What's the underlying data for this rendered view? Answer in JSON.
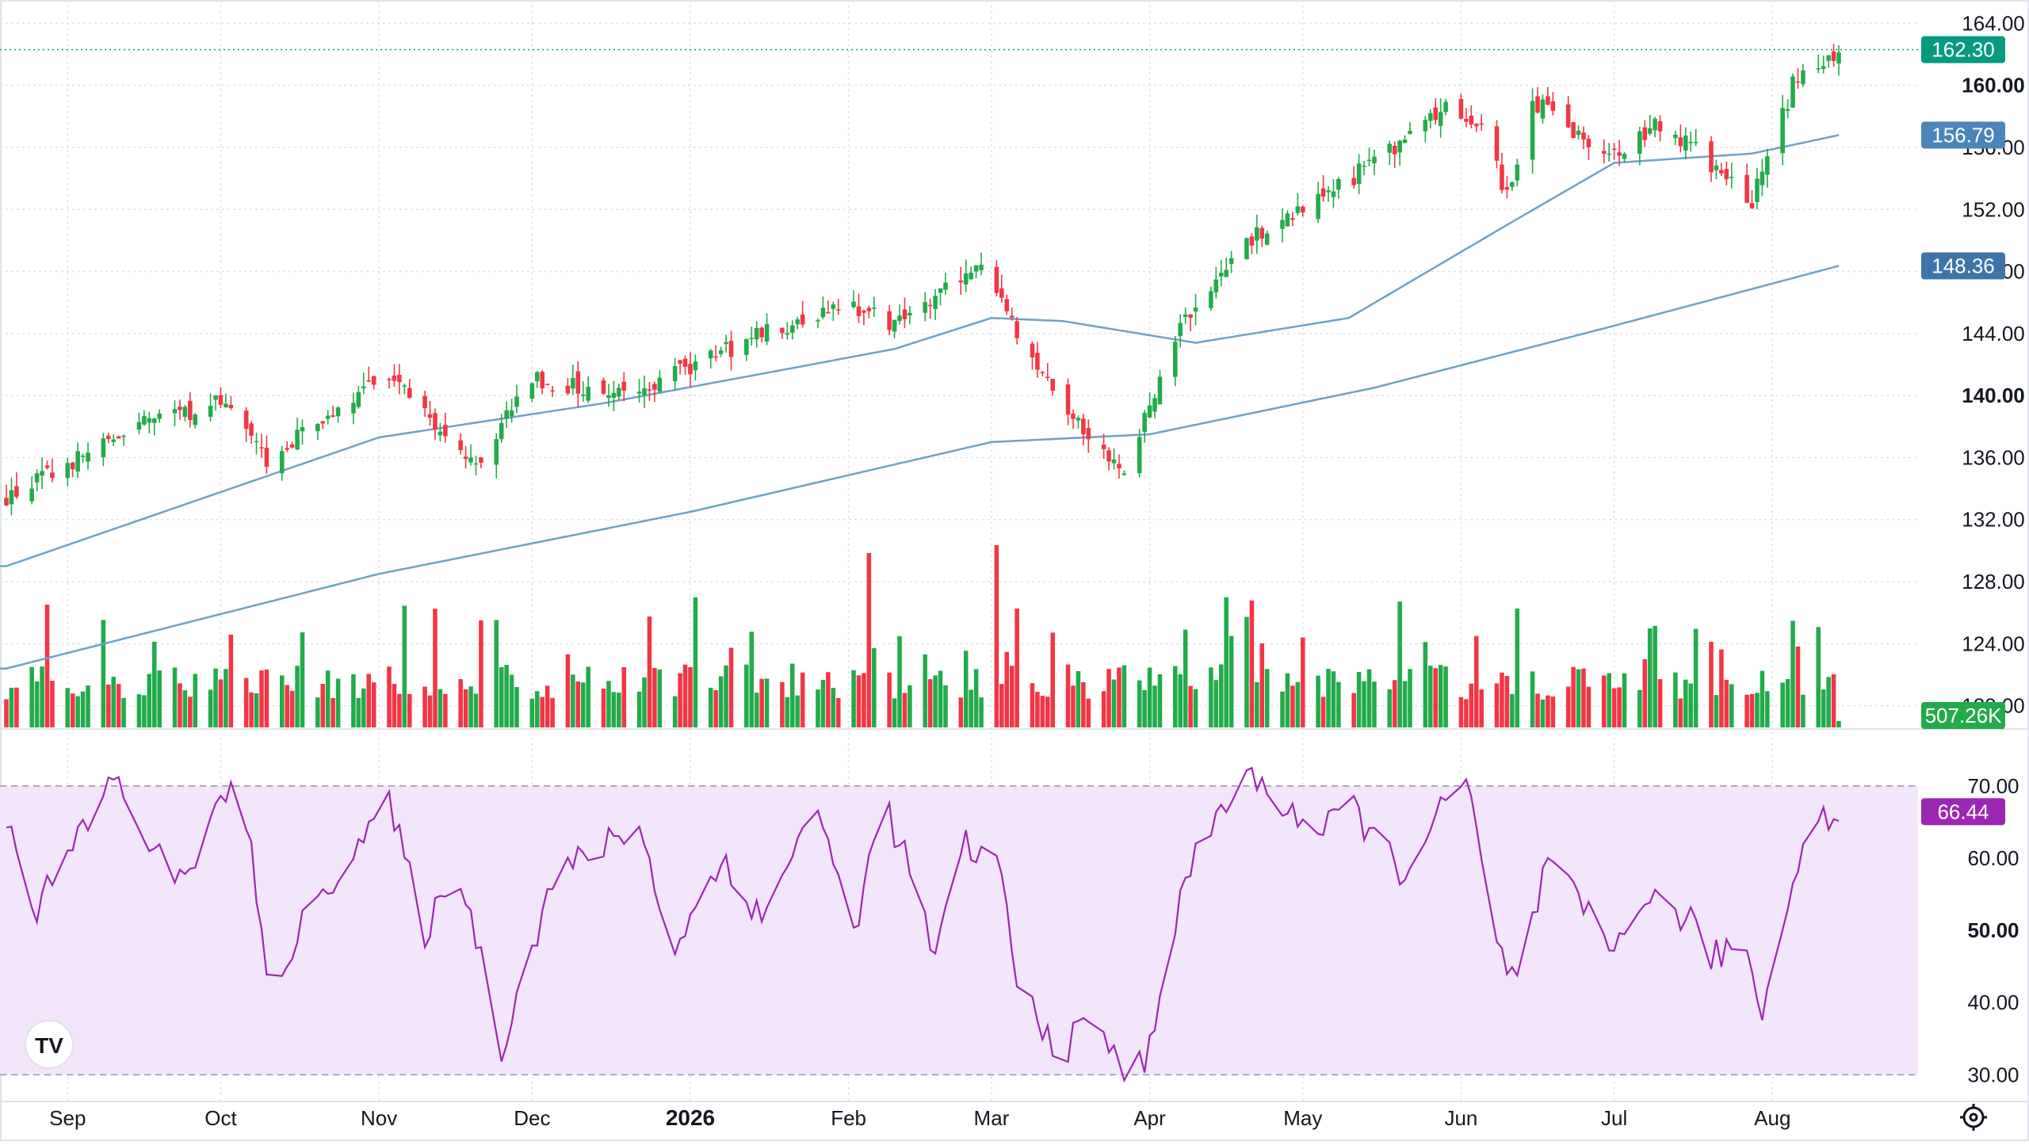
{
  "colors": {
    "up": "#22ab4a",
    "down": "#f23645",
    "ma_line": "#6fa2c4",
    "rsi_line": "#9c27b0",
    "rsi_band": "#f3e5fc",
    "grid": "#e0e3eb",
    "current_price": "#089981",
    "ma50_badge": "#4a86b8",
    "ma200_badge": "#3f74a8",
    "volume_badge": "#22ab4a",
    "rsi_badge": "#9c27b0"
  },
  "badges": {
    "last_price": "162.30",
    "ma50": "156.79",
    "ma200": "148.36",
    "volume": "507.26K",
    "rsi": "66.44"
  },
  "logo_text": "TV",
  "chart_data": [
    {
      "type": "candlestick",
      "x_axis_ticks": [
        "Sep",
        "Oct",
        "Nov",
        "Dec",
        "2026",
        "Feb",
        "Mar",
        "Apr",
        "May",
        "Jun",
        "Jul",
        "Aug"
      ],
      "x_axis_strong": [
        "2026"
      ],
      "y_ticks": [
        "164.00",
        "160.00",
        "156.00",
        "152.00",
        "148.00",
        "144.00",
        "140.00",
        "136.00",
        "132.00",
        "128.00",
        "124.00",
        "120.00"
      ],
      "y_strong": [
        "160.00",
        "140.00"
      ],
      "ylim": [
        118.5,
        165.5
      ],
      "last_price": 162.3,
      "ohlc_keypoints": [
        {
          "date": "Aug 20",
          "close": 133.4
        },
        {
          "date": "Sep 15",
          "close": 138.0
        },
        {
          "date": "Oct 01",
          "close": 139.5
        },
        {
          "date": "Oct 10",
          "close": 136.0
        },
        {
          "date": "Nov 03",
          "close": 141.5
        },
        {
          "date": "Nov 20",
          "close": 135.5
        },
        {
          "date": "Dec 01",
          "close": 141.0
        },
        {
          "date": "Dec 20",
          "close": 140.0
        },
        {
          "date": "Jan 15",
          "close": 144.0
        },
        {
          "date": "Feb 01",
          "close": 146.0
        },
        {
          "date": "Feb 10",
          "close": 144.5
        },
        {
          "date": "Feb 27",
          "close": 148.5
        },
        {
          "date": "Mar 10",
          "close": 141.5
        },
        {
          "date": "Mar 27",
          "close": 135.0
        },
        {
          "date": "Apr 01",
          "close": 139.5
        },
        {
          "date": "Apr 08",
          "close": 145.0
        },
        {
          "date": "Apr 20",
          "close": 150.0
        },
        {
          "date": "May 01",
          "close": 152.0
        },
        {
          "date": "May 15",
          "close": 155.0
        },
        {
          "date": "May 30",
          "close": 159.0
        },
        {
          "date": "Jun 05",
          "close": 157.0
        },
        {
          "date": "Jun 10",
          "close": 153.0
        },
        {
          "date": "Jun 15",
          "close": 159.0
        },
        {
          "date": "Jun 30",
          "close": 155.5
        },
        {
          "date": "Jul 10",
          "close": 157.5
        },
        {
          "date": "Jul 20",
          "close": 155.0
        },
        {
          "date": "Jul 28",
          "close": 152.5
        },
        {
          "date": "Aug 05",
          "close": 160.0
        },
        {
          "date": "Aug 14",
          "close": 162.3
        }
      ],
      "ma50_keypoints": [
        {
          "date": "Aug 20",
          "value": 129.0
        },
        {
          "date": "Nov 01",
          "value": 137.3
        },
        {
          "date": "Dec 15",
          "value": 139.5
        },
        {
          "date": "Feb 10",
          "value": 143.0
        },
        {
          "date": "Mar 01",
          "value": 145.0
        },
        {
          "date": "Mar 15",
          "value": 144.8
        },
        {
          "date": "Apr 10",
          "value": 143.4
        },
        {
          "date": "May 10",
          "value": 145.0
        },
        {
          "date": "Jun 10",
          "value": 151.0
        },
        {
          "date": "Jul 01",
          "value": 155.0
        },
        {
          "date": "Jul 28",
          "value": 155.6
        },
        {
          "date": "Aug 14",
          "value": 156.79
        }
      ],
      "ma200_keypoints": [
        {
          "date": "Aug 20",
          "value": 122.4
        },
        {
          "date": "Nov 01",
          "value": 128.5
        },
        {
          "date": "Jan 01",
          "value": 132.5
        },
        {
          "date": "Mar 01",
          "value": 137.0
        },
        {
          "date": "Apr 01",
          "value": 137.5
        },
        {
          "date": "May 15",
          "value": 140.5
        },
        {
          "date": "Jul 01",
          "value": 144.5
        },
        {
          "date": "Aug 14",
          "value": 148.36
        }
      ],
      "volume_last": "507.26K"
    },
    {
      "type": "line",
      "name": "RSI",
      "y_ticks": [
        "70.00",
        "60.00",
        "50.00",
        "40.00",
        "30.00"
      ],
      "y_strong": [
        "50.00"
      ],
      "ylim": [
        28.5,
        73.5
      ],
      "band": [
        30,
        70
      ],
      "last_value": 66.44,
      "keypoints": [
        {
          "date": "Aug 20",
          "value": 66
        },
        {
          "date": "Aug 26",
          "value": 53
        },
        {
          "date": "Sep 10",
          "value": 71
        },
        {
          "date": "Sep 22",
          "value": 56
        },
        {
          "date": "Oct 05",
          "value": 72
        },
        {
          "date": "Oct 10",
          "value": 42
        },
        {
          "date": "Oct 25",
          "value": 60
        },
        {
          "date": "Nov 03",
          "value": 67
        },
        {
          "date": "Nov 10",
          "value": 50
        },
        {
          "date": "Nov 17",
          "value": 58
        },
        {
          "date": "Nov 25",
          "value": 34
        },
        {
          "date": "Dec 05",
          "value": 57
        },
        {
          "date": "Dec 22",
          "value": 65
        },
        {
          "date": "Dec 28",
          "value": 47
        },
        {
          "date": "Jan 08",
          "value": 60
        },
        {
          "date": "Jan 15",
          "value": 51
        },
        {
          "date": "Jan 25",
          "value": 68
        },
        {
          "date": "Feb 02",
          "value": 50
        },
        {
          "date": "Feb 08",
          "value": 68
        },
        {
          "date": "Feb 14",
          "value": 56
        },
        {
          "date": "Feb 18",
          "value": 46
        },
        {
          "date": "Feb 24",
          "value": 62
        },
        {
          "date": "Mar 03",
          "value": 58
        },
        {
          "date": "Mar 06",
          "value": 42
        },
        {
          "date": "Mar 15",
          "value": 33
        },
        {
          "date": "Mar 22",
          "value": 39
        },
        {
          "date": "Mar 26",
          "value": 30
        },
        {
          "date": "Mar 31",
          "value": 32
        },
        {
          "date": "Apr 05",
          "value": 48
        },
        {
          "date": "Apr 10",
          "value": 61
        },
        {
          "date": "Apr 20",
          "value": 72
        },
        {
          "date": "May 05",
          "value": 63
        },
        {
          "date": "May 10",
          "value": 68
        },
        {
          "date": "May 20",
          "value": 58
        },
        {
          "date": "Jun 02",
          "value": 71
        },
        {
          "date": "Jun 08",
          "value": 47
        },
        {
          "date": "Jun 12",
          "value": 43
        },
        {
          "date": "Jun 18",
          "value": 59
        },
        {
          "date": "Jul 01",
          "value": 47
        },
        {
          "date": "Jul 05",
          "value": 55
        },
        {
          "date": "Jul 15",
          "value": 52
        },
        {
          "date": "Jul 20",
          "value": 46
        },
        {
          "date": "Jul 26",
          "value": 49
        },
        {
          "date": "Jul 30",
          "value": 39
        },
        {
          "date": "Aug 03",
          "value": 50
        },
        {
          "date": "Aug 07",
          "value": 64
        },
        {
          "date": "Aug 14",
          "value": 66.44
        }
      ]
    }
  ]
}
